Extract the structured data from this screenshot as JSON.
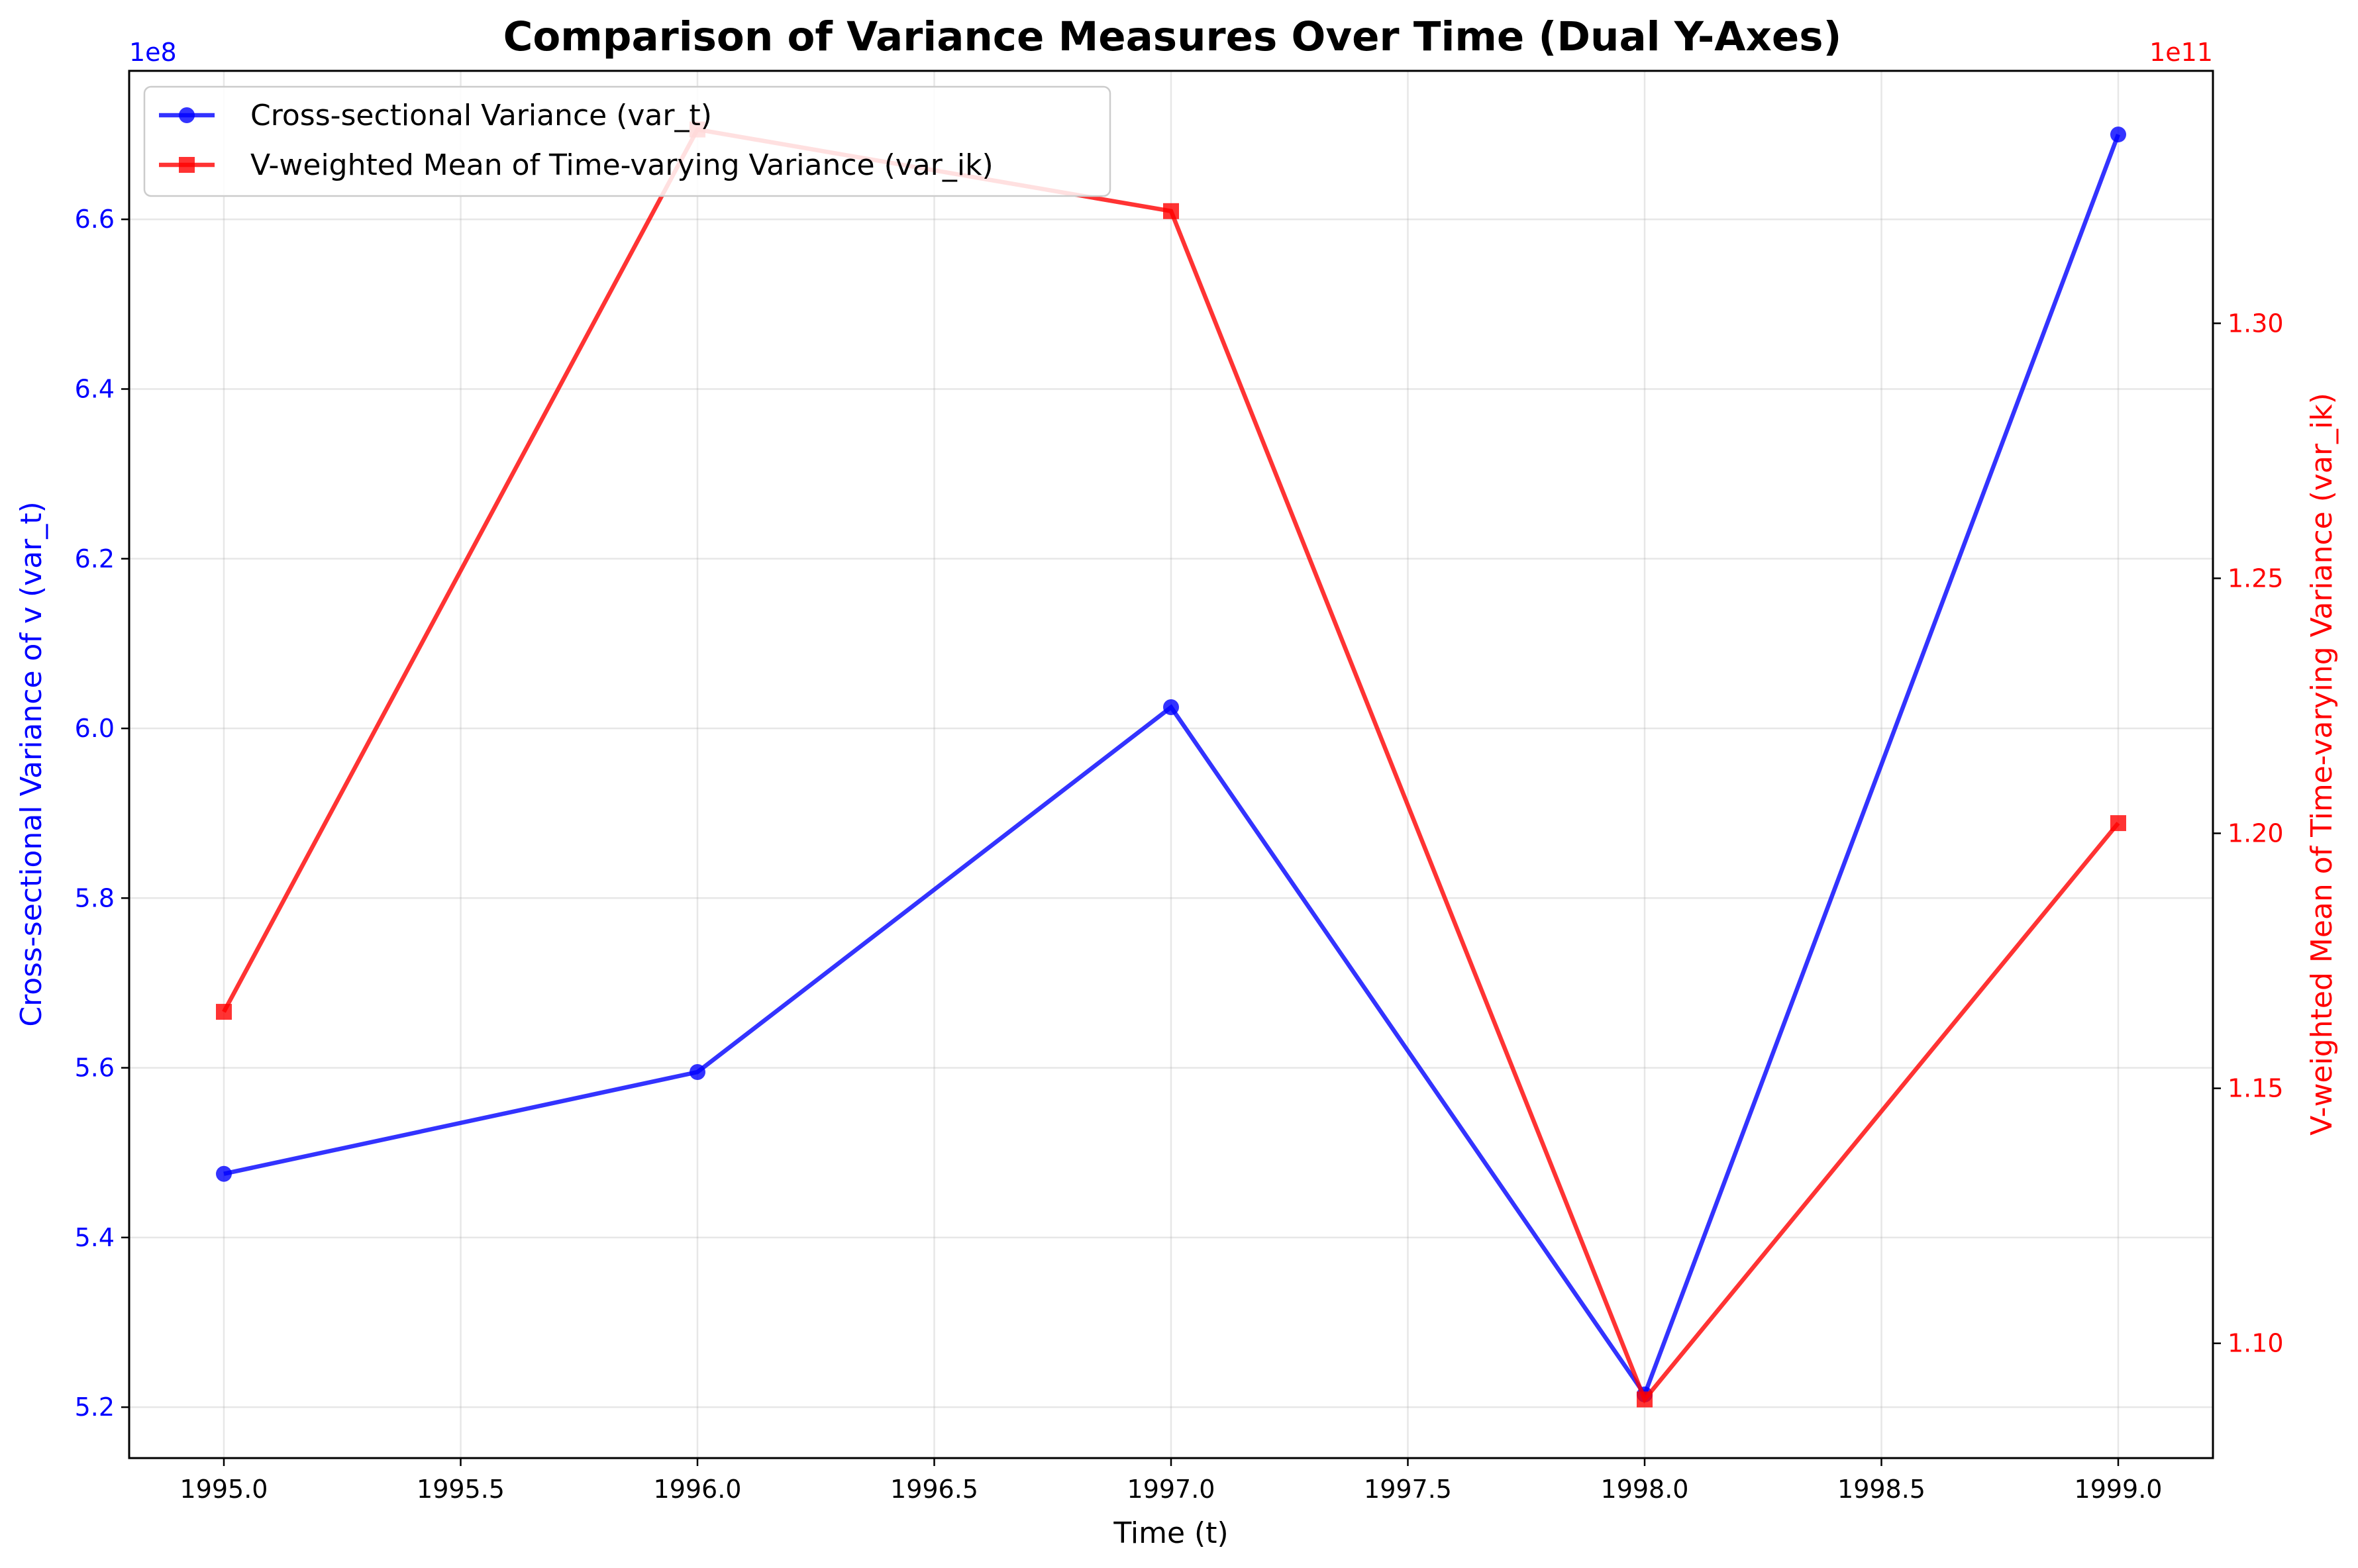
{
  "chart_data": {
    "type": "line",
    "title": "Comparison of Variance Measures Over Time (Dual Y-Axes)",
    "xlabel": "Time (t)",
    "ylabel_left": "Cross-sectional Variance of v (var_t)",
    "ylabel_right": "V-weighted Mean of Time-varying Variance (var_ik)",
    "x": [
      1995.0,
      1996.0,
      1997.0,
      1998.0,
      1999.0
    ],
    "xlim": [
      1994.8,
      1999.2
    ],
    "xticks": [
      1995.0,
      1995.5,
      1996.0,
      1996.5,
      1997.0,
      1997.5,
      1998.0,
      1998.5,
      1999.0
    ],
    "xtick_labels": [
      "1995.0",
      "1995.5",
      "1996.0",
      "1996.5",
      "1997.0",
      "1997.5",
      "1998.0",
      "1998.5",
      "1999.0"
    ],
    "left_axis": {
      "offset_label": "1e8",
      "ylim": [
        5.14,
        6.775
      ],
      "ticks": [
        5.2,
        5.4,
        5.6,
        5.8,
        6.0,
        6.2,
        6.4,
        6.6
      ],
      "tick_labels": [
        "5.2",
        "5.4",
        "5.6",
        "5.8",
        "6.0",
        "6.2",
        "6.4",
        "6.6"
      ],
      "color": "#0000ff"
    },
    "right_axis": {
      "offset_label": "1e11",
      "ylim": [
        1.0775,
        1.3495
      ],
      "ticks": [
        1.1,
        1.15,
        1.2,
        1.25,
        1.3
      ],
      "tick_labels": [
        "1.10",
        "1.15",
        "1.20",
        "1.25",
        "1.30"
      ],
      "color": "#ff0000"
    },
    "series": [
      {
        "name": "Cross-sectional Variance (var_t)",
        "axis": "left",
        "values": [
          5.475,
          5.595,
          6.025,
          5.215,
          6.7
        ],
        "color": "#0000ff",
        "marker": "circle"
      },
      {
        "name": "V-weighted Mean of Time-varying Variance (var_ik)",
        "axis": "right",
        "values": [
          1.165,
          1.338,
          1.322,
          1.089,
          1.202
        ],
        "color": "#ff0000",
        "marker": "square"
      }
    ],
    "grid": true,
    "legend_position": "top-left"
  }
}
